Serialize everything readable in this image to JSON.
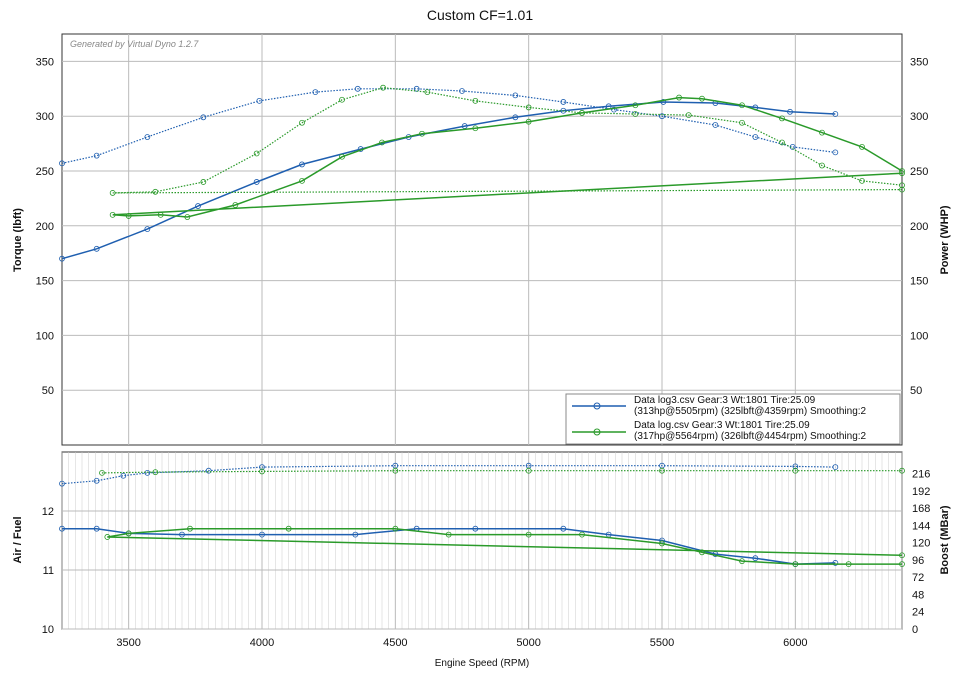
{
  "chart_data": [
    {
      "type": "line",
      "title": "Custom CF=1.01",
      "watermark": "Generated by Virtual Dyno 1.2.7",
      "xlabel": "Engine Speed (RPM)",
      "ylabel": "Torque (lbft)",
      "y2label": "Power (WHP)",
      "xlim": [
        3250,
        6400
      ],
      "ylim": [
        0,
        375
      ],
      "xticks": [
        3500,
        4000,
        4500,
        5000,
        5500,
        6000
      ],
      "yticks": [
        50,
        100,
        150,
        200,
        250,
        300,
        350
      ],
      "grid": true,
      "legend_position": "bottom-right",
      "legend": [
        {
          "line1": "Data log3.csv Gear:3 Wt:1801 Tire:25.09",
          "line2": "(313hp@5505rpm) (325lbft@4359rpm) Smoothing:2",
          "color": "#1f5fb0"
        },
        {
          "line1": "Data log.csv Gear:3 Wt:1801 Tire:25.09",
          "line2": "(317hp@5564rpm) (326lbft@4454rpm) Smoothing:2",
          "color": "#2a9a2a"
        }
      ],
      "series": [
        {
          "name": "log3 power",
          "color": "#1f5fb0",
          "style": "solid",
          "x": [
            3250,
            3380,
            3570,
            3760,
            3980,
            4150,
            4370,
            4550,
            4760,
            4950,
            5130,
            5300,
            5505,
            5700,
            5850,
            5980,
            6150
          ],
          "y": [
            170,
            179,
            197,
            218,
            240,
            256,
            270,
            281,
            291,
            299,
            305,
            309,
            313,
            312,
            308,
            304,
            302
          ]
        },
        {
          "name": "log3 torque",
          "color": "#1f5fb0",
          "style": "dotted",
          "x": [
            3250,
            3380,
            3570,
            3780,
            3990,
            4200,
            4359,
            4580,
            4750,
            4950,
            5130,
            5320,
            5500,
            5700,
            5850,
            5990,
            6150
          ],
          "y": [
            257,
            264,
            281,
            299,
            314,
            322,
            325,
            325,
            323,
            319,
            313,
            306,
            300,
            292,
            281,
            272,
            267
          ]
        },
        {
          "name": "log power",
          "color": "#2a9a2a",
          "style": "solid",
          "x": [
            6400,
            3440,
            3500,
            3620,
            3720,
            3900,
            4150,
            4300,
            4450,
            4600,
            4800,
            5000,
            5200,
            5400,
            5564,
            5650,
            5800,
            5950,
            6100,
            6250,
            6400
          ],
          "y": [
            248,
            210,
            209,
            210,
            208,
            219,
            241,
            263,
            276,
            284,
            289,
            295,
            303,
            310,
            317,
            316,
            310,
            298,
            285,
            272,
            250
          ]
        },
        {
          "name": "log torque",
          "color": "#2a9a2a",
          "style": "dotted",
          "x": [
            6400,
            3440,
            3600,
            3780,
            3980,
            4150,
            4300,
            4454,
            4620,
            4800,
            5000,
            5200,
            5400,
            5600,
            5800,
            5950,
            6100,
            6250,
            6400
          ],
          "y": [
            233,
            230,
            231,
            240,
            266,
            294,
            315,
            326,
            322,
            314,
            308,
            303,
            302,
            301,
            294,
            276,
            255,
            241,
            237
          ]
        }
      ]
    },
    {
      "type": "line",
      "xlabel": "Engine Speed (RPM)",
      "ylabel": "Air / Fuel",
      "y2label": "Boost (MBar)",
      "xlim": [
        3250,
        6400
      ],
      "ylim": [
        10,
        13
      ],
      "y2lim": [
        0,
        246
      ],
      "xticks": [
        3500,
        4000,
        4500,
        5000,
        5500,
        6000
      ],
      "yticks": [
        10,
        11,
        12
      ],
      "y2ticks": [
        0,
        24,
        48,
        72,
        96,
        120,
        144,
        168,
        192,
        216
      ],
      "series": [
        {
          "name": "log3 afr",
          "color": "#1f5fb0",
          "style": "solid",
          "axis": "left",
          "x": [
            3250,
            3380,
            3500,
            3700,
            4000,
            4350,
            4580,
            4800,
            5130,
            5300,
            5500,
            5700,
            5850,
            6000,
            6150
          ],
          "y": [
            11.7,
            11.7,
            11.62,
            11.6,
            11.6,
            11.6,
            11.7,
            11.7,
            11.7,
            11.6,
            11.5,
            11.27,
            11.2,
            11.1,
            11.12
          ]
        },
        {
          "name": "log afr",
          "color": "#2a9a2a",
          "style": "solid",
          "axis": "left",
          "x": [
            6400,
            3420,
            3500,
            3730,
            4100,
            4500,
            4700,
            5000,
            5200,
            5500,
            5650,
            5800,
            6000,
            6200,
            6400
          ],
          "y": [
            11.25,
            11.56,
            11.62,
            11.7,
            11.7,
            11.7,
            11.6,
            11.6,
            11.6,
            11.45,
            11.3,
            11.15,
            11.1,
            11.1,
            11.1
          ]
        },
        {
          "name": "log3 boost",
          "color": "#1f5fb0",
          "style": "dotted",
          "axis": "right",
          "x": [
            3250,
            3380,
            3480,
            3570,
            3800,
            4000,
            4500,
            5000,
            5500,
            6000,
            6150
          ],
          "y": [
            202,
            206,
            213,
            217,
            220,
            225,
            227,
            227,
            227,
            226,
            225
          ]
        },
        {
          "name": "log boost",
          "color": "#2a9a2a",
          "style": "dotted",
          "axis": "right",
          "x": [
            3400,
            3600,
            4000,
            4500,
            5000,
            5500,
            6000,
            6400
          ],
          "y": [
            217,
            218,
            219,
            220,
            220,
            220,
            220,
            220
          ]
        }
      ]
    }
  ]
}
